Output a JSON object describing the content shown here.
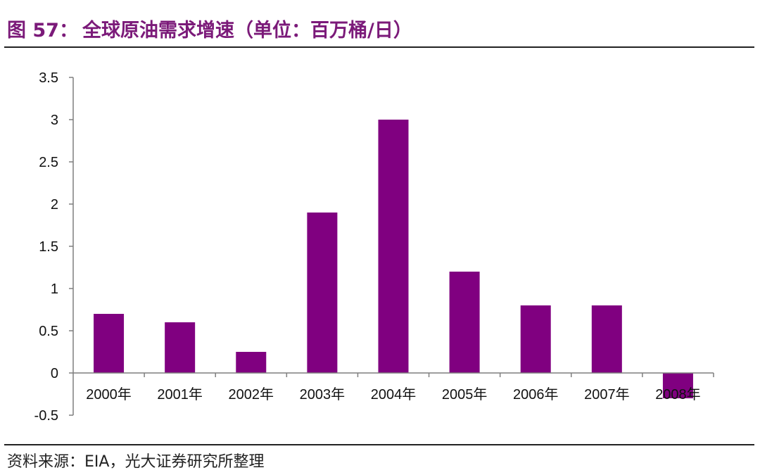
{
  "figure": {
    "label": "图 57：",
    "title": "全球原油需求增速（单位：百万桶/日）"
  },
  "source": {
    "text": "资料来源：EIA，光大证券研究所整理"
  },
  "chart_data": {
    "type": "bar",
    "categories": [
      "2000年",
      "2001年",
      "2002年",
      "2003年",
      "2004年",
      "2005年",
      "2006年",
      "2007年",
      "2008年"
    ],
    "values": [
      0.7,
      0.6,
      0.25,
      1.9,
      3.0,
      1.2,
      0.8,
      0.8,
      -0.3
    ],
    "yticks": [
      "3.5",
      "3",
      "2.5",
      "2",
      "1.5",
      "1",
      "0.5",
      "0",
      "-0.5"
    ],
    "ylim": [
      -0.5,
      3.5
    ],
    "grid": false,
    "legend": "none",
    "bar_color": "#800080",
    "axis_color": "#7f7f7f"
  }
}
